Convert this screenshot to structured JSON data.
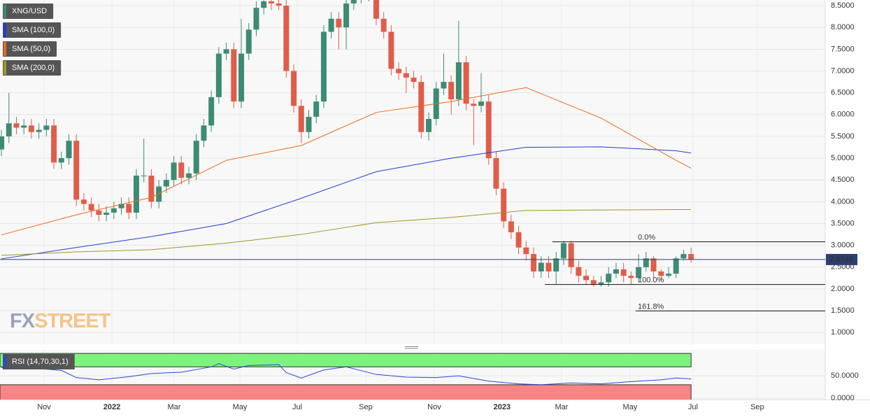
{
  "chart_data": {
    "type": "candlestick",
    "name": "XNG/USD",
    "up_color": "#3d8b74",
    "down_color": "#e05d49",
    "x": [
      0,
      1,
      2,
      3,
      4,
      5,
      6,
      7,
      8,
      9,
      10,
      11,
      12,
      13,
      14,
      15,
      16,
      17,
      18,
      19,
      20,
      21,
      22,
      23,
      24,
      25,
      26,
      27,
      28,
      29,
      30,
      31,
      32,
      33,
      34,
      35,
      36,
      37,
      38,
      39,
      40,
      41,
      42,
      43,
      44,
      45,
      46,
      47,
      48,
      49,
      50,
      51,
      52,
      53,
      54,
      55,
      56,
      57,
      58,
      59,
      60,
      61,
      62,
      63,
      64,
      65,
      66,
      67,
      68,
      69,
      70,
      71,
      72,
      73,
      74,
      75,
      76,
      77,
      78,
      79,
      80,
      81,
      82,
      83,
      84,
      85,
      86,
      87,
      88,
      89,
      90,
      91,
      92
    ],
    "open": [
      5.2,
      5.5,
      5.8,
      5.7,
      5.75,
      5.6,
      5.65,
      5.75,
      4.9,
      5.0,
      5.4,
      4.05,
      3.95,
      3.8,
      3.7,
      3.75,
      3.85,
      3.95,
      3.75,
      4.6,
      4.6,
      4.0,
      4.35,
      4.5,
      4.9,
      4.55,
      4.65,
      5.4,
      5.75,
      6.4,
      7.4,
      7.5,
      6.3,
      7.4,
      7.95,
      8.45,
      8.6,
      8.55,
      8.5,
      7.0,
      6.2,
      5.6,
      5.95,
      6.3,
      7.9,
      8.2,
      8.0,
      8.55,
      8.7,
      8.75,
      8.75,
      8.2,
      7.9,
      7.05,
      6.95,
      6.85,
      6.75,
      5.6,
      5.9,
      6.6,
      6.75,
      6.35,
      7.2,
      6.25,
      6.2,
      6.3,
      5.0,
      4.3,
      3.55,
      3.3,
      2.95,
      2.8,
      2.4,
      2.6,
      2.4,
      2.7,
      3.05,
      2.5,
      2.3,
      2.2,
      2.1,
      2.15,
      2.35,
      2.45,
      2.3,
      2.25,
      2.5,
      2.7,
      2.4,
      2.3,
      2.35,
      2.7,
      2.8
    ],
    "high": [
      5.65,
      6.5,
      5.95,
      5.9,
      5.9,
      5.8,
      5.9,
      5.9,
      5.15,
      5.55,
      5.55,
      4.2,
      4.1,
      3.95,
      3.9,
      4.0,
      4.1,
      4.1,
      4.75,
      5.45,
      4.75,
      4.5,
      4.65,
      5.05,
      5.05,
      4.8,
      5.55,
      5.9,
      6.55,
      7.55,
      7.65,
      7.65,
      8.2,
      8.1,
      8.6,
      8.75,
      8.75,
      8.7,
      8.65,
      7.15,
      6.35,
      6.1,
      6.45,
      8.05,
      8.35,
      8.35,
      8.7,
      8.85,
      8.9,
      8.9,
      8.9,
      8.35,
      8.05,
      7.2,
      7.1,
      7.0,
      6.9,
      6.05,
      6.75,
      7.4,
      6.9,
      8.15,
      7.35,
      6.35,
      6.95,
      6.45,
      5.15,
      4.45,
      3.7,
      3.45,
      3.1,
      2.95,
      2.75,
      2.75,
      2.85,
      3.1,
      3.1,
      2.65,
      2.45,
      2.3,
      2.3,
      2.5,
      2.6,
      2.6,
      2.4,
      2.8,
      2.85,
      2.75,
      2.45,
      2.5,
      2.75,
      2.9,
      2.95
    ],
    "low": [
      5.05,
      5.35,
      5.55,
      5.55,
      5.45,
      5.45,
      5.5,
      4.75,
      4.75,
      4.85,
      3.9,
      3.8,
      3.65,
      3.55,
      3.55,
      3.6,
      3.7,
      3.6,
      3.6,
      4.45,
      3.85,
      3.85,
      4.2,
      4.35,
      4.4,
      4.4,
      4.5,
      5.25,
      5.6,
      6.25,
      7.25,
      6.15,
      6.15,
      7.25,
      7.8,
      8.3,
      8.4,
      8.4,
      6.85,
      6.05,
      5.35,
      5.45,
      5.8,
      6.15,
      7.75,
      7.5,
      7.5,
      8.4,
      8.55,
      8.6,
      8.05,
      7.75,
      6.9,
      6.8,
      6.5,
      6.6,
      5.45,
      5.4,
      5.75,
      6.45,
      6.0,
      6.2,
      6.1,
      5.3,
      6.05,
      4.85,
      4.15,
      3.4,
      3.15,
      2.8,
      2.65,
      2.25,
      2.25,
      2.25,
      2.1,
      2.55,
      2.35,
      2.15,
      2.1,
      2.05,
      2.05,
      2.05,
      2.25,
      2.15,
      2.1,
      2.15,
      2.4,
      2.25,
      2.2,
      2.25,
      2.25,
      2.65,
      2.6
    ],
    "close": [
      5.5,
      5.8,
      5.7,
      5.75,
      5.6,
      5.65,
      5.75,
      4.9,
      5.0,
      5.4,
      4.05,
      3.95,
      3.8,
      3.7,
      3.75,
      3.85,
      3.95,
      3.75,
      4.6,
      4.6,
      4.0,
      4.35,
      4.5,
      4.9,
      4.55,
      4.65,
      5.4,
      5.75,
      6.4,
      7.4,
      7.5,
      6.3,
      7.4,
      7.95,
      8.45,
      8.6,
      8.55,
      8.5,
      7.0,
      6.2,
      5.6,
      5.95,
      6.3,
      7.9,
      8.2,
      8.0,
      8.55,
      8.7,
      8.75,
      8.75,
      8.2,
      7.9,
      7.05,
      6.95,
      6.85,
      6.75,
      5.6,
      5.9,
      6.6,
      6.75,
      6.35,
      7.2,
      6.25,
      6.2,
      6.3,
      5.0,
      4.3,
      3.55,
      3.3,
      2.95,
      2.8,
      2.4,
      2.6,
      2.4,
      2.7,
      3.05,
      2.5,
      2.3,
      2.2,
      2.1,
      2.15,
      2.35,
      2.45,
      2.3,
      2.25,
      2.5,
      2.7,
      2.4,
      2.3,
      2.35,
      2.7,
      2.8,
      2.674
    ],
    "series": [
      {
        "name": "SMA (100,0)",
        "color": "#1f3fd0",
        "x": [
          0,
          10,
          20,
          30,
          40,
          50,
          60,
          70,
          80,
          90,
          92
        ],
        "values": [
          2.69,
          2.95,
          3.2,
          3.5,
          4.08,
          4.69,
          5.0,
          5.25,
          5.26,
          5.17,
          5.12
        ]
      },
      {
        "name": "SMA (50,0)",
        "color": "#ec6a1c",
        "x": [
          0,
          10,
          20,
          30,
          40,
          50,
          60,
          70,
          80,
          90,
          92
        ],
        "values": [
          3.24,
          3.7,
          4.1,
          4.95,
          5.29,
          6.05,
          6.3,
          6.62,
          5.92,
          4.95,
          4.77
        ]
      },
      {
        "name": "SMA (200,0)",
        "color": "#a59420",
        "x": [
          0,
          10,
          20,
          30,
          40,
          50,
          60,
          70,
          80,
          90,
          92
        ],
        "values": [
          2.77,
          2.85,
          2.9,
          3.05,
          3.25,
          3.52,
          3.64,
          3.8,
          3.81,
          3.82,
          3.82
        ]
      }
    ],
    "xlim": [
      -0.19,
      109.9
    ],
    "xticks": [
      {
        "value": 5.69,
        "label": "Nov"
      },
      {
        "value": 14.74,
        "label": "2022"
      },
      {
        "value": 23.04,
        "label": "Mar"
      },
      {
        "value": 31.81,
        "label": "May"
      },
      {
        "value": 39.46,
        "label": "Jul"
      },
      {
        "value": 48.6,
        "label": "Sep"
      },
      {
        "value": 57.74,
        "label": "Nov"
      },
      {
        "value": 66.79,
        "label": "2023"
      },
      {
        "value": 74.72,
        "label": "Mar"
      },
      {
        "value": 83.86,
        "label": "May"
      },
      {
        "value": 92.26,
        "label": "Jul"
      },
      {
        "value": 100.84,
        "label": "Sep"
      }
    ],
    "ylim": [
      0.73,
      8.63
    ],
    "yticks": [
      {
        "value": 1,
        "label": "1.0000"
      },
      {
        "value": 1.5,
        "label": "1.5000"
      },
      {
        "value": 2,
        "label": "2.0000"
      },
      {
        "value": 2.5,
        "label": "2.5000"
      },
      {
        "value": 3,
        "label": "3.0000"
      },
      {
        "value": 3.5,
        "label": "3.5000"
      },
      {
        "value": 4,
        "label": "4.0000"
      },
      {
        "value": 4.5,
        "label": "4.5000"
      },
      {
        "value": 5,
        "label": "5.0000"
      },
      {
        "value": 5.5,
        "label": "5.5000"
      },
      {
        "value": 6,
        "label": "6.0000"
      },
      {
        "value": 6.5,
        "label": "6.5000"
      },
      {
        "value": 7,
        "label": "7.0000"
      },
      {
        "value": 7.5,
        "label": "7.5000"
      },
      {
        "value": 8,
        "label": "8.0000"
      },
      {
        "value": 8.5,
        "label": "8.5000"
      }
    ],
    "grid": true,
    "last_price": {
      "value": 2.674,
      "label": "2.6740",
      "color": "#2b3f73"
    },
    "fibonacci": [
      {
        "label": "0.0%",
        "value": 3.08
      },
      {
        "label": "100.0%",
        "value": 2.1
      },
      {
        "label": "161.8%",
        "value": 1.494
      }
    ],
    "rsi": {
      "name": "RSI (14,70,30,1)",
      "color": "#2b46d6",
      "x": [
        0,
        5,
        8,
        10,
        13,
        17,
        20,
        24,
        28,
        29,
        31,
        33,
        37,
        38,
        40,
        43,
        46,
        50,
        54,
        58,
        61,
        65,
        69,
        72,
        76,
        80,
        84,
        88,
        90,
        92
      ],
      "values": [
        68,
        66,
        62,
        46,
        41,
        48,
        55,
        58,
        70,
        77,
        65,
        73,
        75,
        57,
        45,
        63,
        70,
        53,
        47,
        46,
        50,
        38,
        32,
        30,
        34,
        32,
        37,
        41,
        45,
        43
      ],
      "ylim": [
        -3,
        108
      ],
      "yticks": [
        {
          "value": 0,
          "label": "0.0000"
        },
        {
          "value": 50,
          "label": "50.0000"
        }
      ],
      "overbought": 70,
      "oversold": 30,
      "max": 100
    },
    "watermark": [
      "FX",
      "STREET"
    ]
  }
}
